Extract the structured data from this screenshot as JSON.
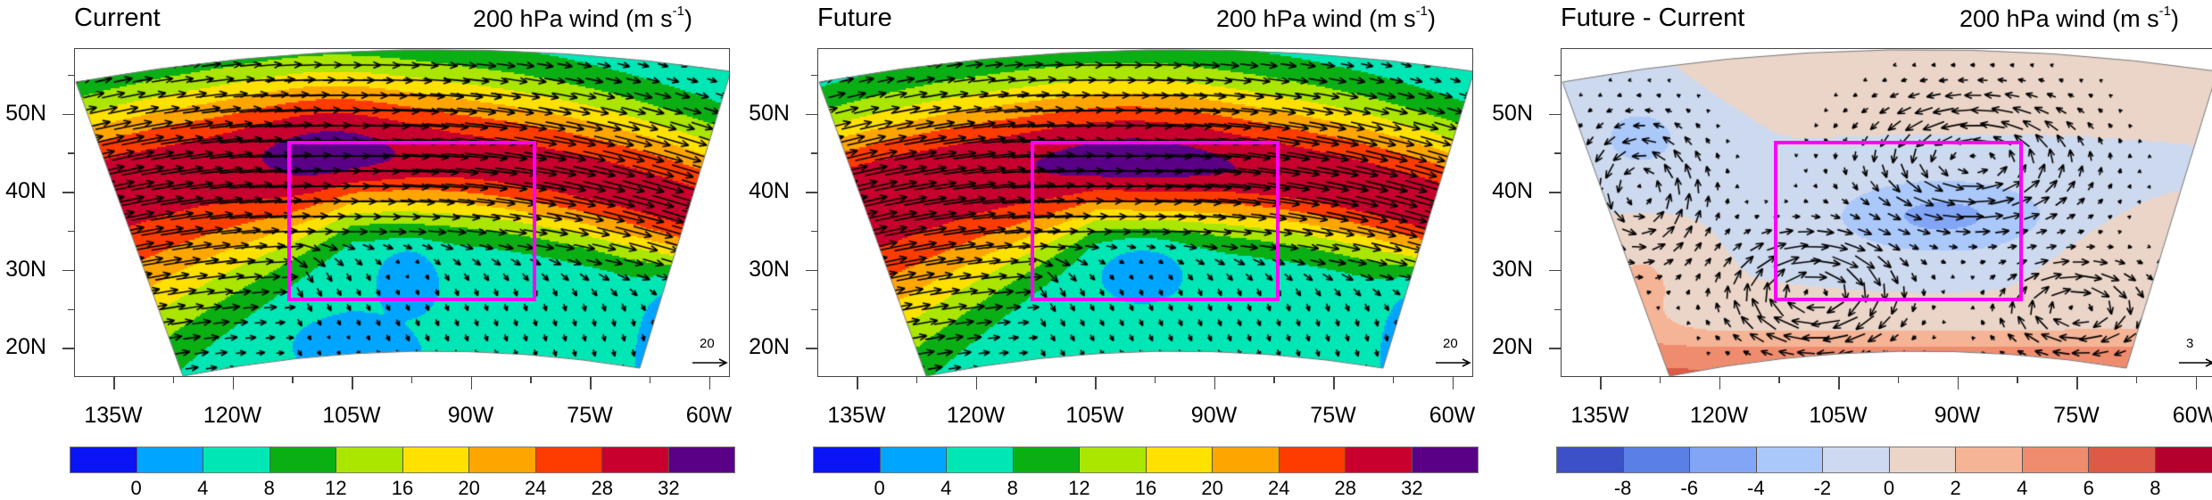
{
  "panels": [
    {
      "id": "current",
      "title": "Current",
      "subtitle_main": "200 hPa wind (m s",
      "subtitle_sup": "-1",
      "subtitle_end": ")",
      "ref_vector_label": "20",
      "ref_vector_value": 20,
      "field": "speed"
    },
    {
      "id": "future",
      "title": "Future",
      "subtitle_main": "200 hPa wind (m s",
      "subtitle_sup": "-1",
      "subtitle_end": ")",
      "ref_vector_label": "20",
      "ref_vector_value": 20,
      "field": "speed"
    },
    {
      "id": "difference",
      "title": "Future - Current",
      "subtitle_main": "200 hPa wind (m s",
      "subtitle_sup": "-1",
      "subtitle_end": ")",
      "ref_vector_label": "3",
      "ref_vector_value": 3,
      "field": "diff"
    }
  ],
  "lat_labels": [
    "50N",
    "40N",
    "30N",
    "20N"
  ],
  "lat_values": [
    50,
    40,
    30,
    20
  ],
  "lon_labels": [
    "135W",
    "120W",
    "105W",
    "90W",
    "75W",
    "60W"
  ],
  "lon_values": [
    -135,
    -120,
    -105,
    -90,
    -75,
    -60
  ],
  "speed_colorbar": {
    "labels": [
      "0",
      "4",
      "8",
      "12",
      "16",
      "20",
      "24",
      "28",
      "32"
    ],
    "colors": [
      "#0a14f5",
      "#00a5ff",
      "#00e6b4",
      "#0aaf14",
      "#aae600",
      "#ffe100",
      "#ffa500",
      "#ff3c00",
      "#c8002d",
      "#5a0087"
    ]
  },
  "diff_colorbar": {
    "labels": [
      "-8",
      "-6",
      "-4",
      "-2",
      "0",
      "2",
      "4",
      "6",
      "8"
    ],
    "colors": [
      "#3c50c8",
      "#5a80e6",
      "#82a5f5",
      "#aac8fa",
      "#cdd9ee",
      "#ebd5c8",
      "#f5b496",
      "#f08c6e",
      "#dc5a46",
      "#b4002d"
    ]
  },
  "highlight_box_color": "#ff00ff"
}
